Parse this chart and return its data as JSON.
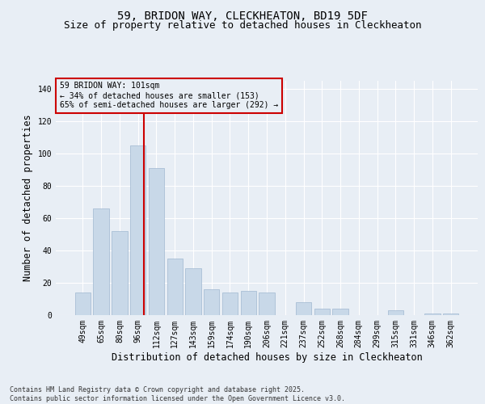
{
  "title1": "59, BRIDON WAY, CLECKHEATON, BD19 5DF",
  "title2": "Size of property relative to detached houses in Cleckheaton",
  "xlabel": "Distribution of detached houses by size in Cleckheaton",
  "ylabel": "Number of detached properties",
  "categories": [
    "49sqm",
    "65sqm",
    "80sqm",
    "96sqm",
    "112sqm",
    "127sqm",
    "143sqm",
    "159sqm",
    "174sqm",
    "190sqm",
    "206sqm",
    "221sqm",
    "237sqm",
    "252sqm",
    "268sqm",
    "284sqm",
    "299sqm",
    "315sqm",
    "331sqm",
    "346sqm",
    "362sqm"
  ],
  "values": [
    14,
    66,
    52,
    105,
    91,
    35,
    29,
    16,
    14,
    15,
    14,
    0,
    8,
    4,
    4,
    0,
    0,
    3,
    0,
    1,
    1
  ],
  "bar_color": "#c8d8e8",
  "bar_edge_color": "#a0b8d0",
  "bar_width": 0.85,
  "vline_color": "#cc0000",
  "annotation_line1": "59 BRIDON WAY: 101sqm",
  "annotation_line2": "← 34% of detached houses are smaller (153)",
  "annotation_line3": "65% of semi-detached houses are larger (292) →",
  "annotation_box_color": "#cc0000",
  "background_color": "#e8eef5",
  "grid_color": "#ffffff",
  "ylim": [
    0,
    145
  ],
  "yticks": [
    0,
    20,
    40,
    60,
    80,
    100,
    120,
    140
  ],
  "footer": "Contains HM Land Registry data © Crown copyright and database right 2025.\nContains public sector information licensed under the Open Government Licence v3.0.",
  "title_fontsize": 10,
  "subtitle_fontsize": 9,
  "tick_fontsize": 7,
  "label_fontsize": 8.5,
  "annotation_fontsize": 7,
  "footer_fontsize": 6
}
